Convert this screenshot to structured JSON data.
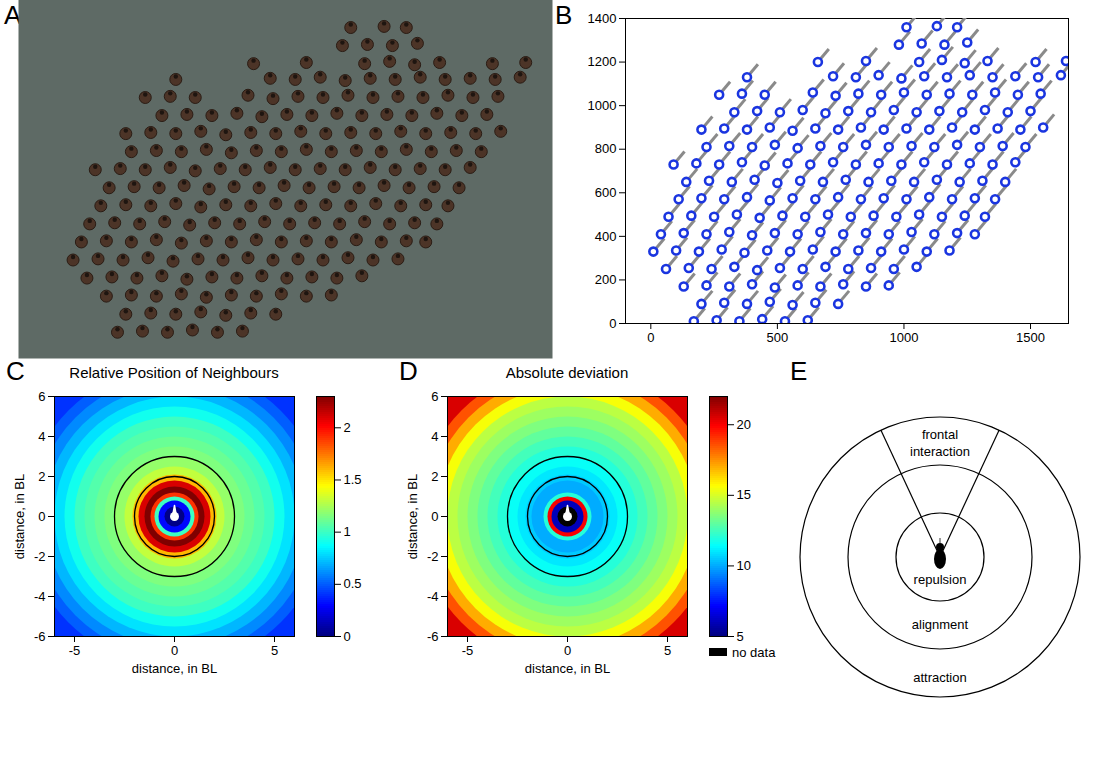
{
  "photo": {
    "panel": "A"
  },
  "chart_data": [
    {
      "panel": "B",
      "type": "scatter",
      "color": "#1a35e0",
      "heading": 40,
      "xlim": [
        -100,
        1650
      ],
      "xticks": [
        0,
        500,
        1000,
        1500
      ],
      "ylim": [
        0,
        1400
      ],
      "yticks": [
        0,
        200,
        400,
        600,
        800,
        1000,
        1200,
        1400
      ],
      "points": [
        [
          170,
          10
        ],
        [
          260,
          15
        ],
        [
          350,
          10
        ],
        [
          440,
          20
        ],
        [
          530,
          10
        ],
        [
          620,
          15
        ],
        [
          200,
          90
        ],
        [
          290,
          95
        ],
        [
          380,
          90
        ],
        [
          470,
          100
        ],
        [
          560,
          85
        ],
        [
          650,
          95
        ],
        [
          740,
          90
        ],
        [
          130,
          170
        ],
        [
          220,
          175
        ],
        [
          310,
          170
        ],
        [
          400,
          180
        ],
        [
          490,
          165
        ],
        [
          580,
          175
        ],
        [
          670,
          170
        ],
        [
          760,
          180
        ],
        [
          850,
          170
        ],
        [
          940,
          175
        ],
        [
          60,
          250
        ],
        [
          150,
          255
        ],
        [
          240,
          250
        ],
        [
          330,
          260
        ],
        [
          420,
          245
        ],
        [
          510,
          255
        ],
        [
          600,
          250
        ],
        [
          690,
          260
        ],
        [
          780,
          250
        ],
        [
          870,
          255
        ],
        [
          960,
          250
        ],
        [
          1050,
          260
        ],
        [
          10,
          330
        ],
        [
          100,
          335
        ],
        [
          190,
          330
        ],
        [
          280,
          340
        ],
        [
          370,
          325
        ],
        [
          460,
          335
        ],
        [
          550,
          330
        ],
        [
          640,
          340
        ],
        [
          730,
          330
        ],
        [
          820,
          335
        ],
        [
          910,
          330
        ],
        [
          1000,
          340
        ],
        [
          1090,
          330
        ],
        [
          1180,
          335
        ],
        [
          40,
          410
        ],
        [
          130,
          415
        ],
        [
          220,
          410
        ],
        [
          310,
          420
        ],
        [
          400,
          405
        ],
        [
          490,
          415
        ],
        [
          580,
          410
        ],
        [
          670,
          420
        ],
        [
          760,
          410
        ],
        [
          850,
          415
        ],
        [
          940,
          410
        ],
        [
          1030,
          420
        ],
        [
          1120,
          410
        ],
        [
          1210,
          415
        ],
        [
          1280,
          410
        ],
        [
          70,
          490
        ],
        [
          160,
          495
        ],
        [
          250,
          490
        ],
        [
          340,
          500
        ],
        [
          430,
          485
        ],
        [
          520,
          495
        ],
        [
          610,
          490
        ],
        [
          700,
          500
        ],
        [
          790,
          490
        ],
        [
          880,
          495
        ],
        [
          970,
          490
        ],
        [
          1060,
          500
        ],
        [
          1150,
          490
        ],
        [
          1240,
          495
        ],
        [
          1320,
          490
        ],
        [
          110,
          570
        ],
        [
          200,
          575
        ],
        [
          290,
          570
        ],
        [
          380,
          580
        ],
        [
          470,
          565
        ],
        [
          560,
          575
        ],
        [
          650,
          570
        ],
        [
          740,
          580
        ],
        [
          830,
          570
        ],
        [
          920,
          575
        ],
        [
          1010,
          570
        ],
        [
          1100,
          580
        ],
        [
          1190,
          570
        ],
        [
          1280,
          575
        ],
        [
          1360,
          570
        ],
        [
          140,
          650
        ],
        [
          230,
          655
        ],
        [
          320,
          650
        ],
        [
          410,
          660
        ],
        [
          500,
          645
        ],
        [
          590,
          655
        ],
        [
          680,
          650
        ],
        [
          770,
          660
        ],
        [
          860,
          650
        ],
        [
          950,
          655
        ],
        [
          1040,
          650
        ],
        [
          1130,
          660
        ],
        [
          1220,
          650
        ],
        [
          1310,
          655
        ],
        [
          1400,
          650
        ],
        [
          90,
          730
        ],
        [
          180,
          735
        ],
        [
          270,
          730
        ],
        [
          360,
          740
        ],
        [
          450,
          725
        ],
        [
          540,
          735
        ],
        [
          630,
          730
        ],
        [
          720,
          740
        ],
        [
          810,
          730
        ],
        [
          900,
          735
        ],
        [
          990,
          730
        ],
        [
          1080,
          740
        ],
        [
          1170,
          730
        ],
        [
          1260,
          735
        ],
        [
          1350,
          730
        ],
        [
          1440,
          740
        ],
        [
          220,
          810
        ],
        [
          310,
          815
        ],
        [
          400,
          810
        ],
        [
          490,
          820
        ],
        [
          580,
          805
        ],
        [
          670,
          815
        ],
        [
          760,
          810
        ],
        [
          850,
          820
        ],
        [
          940,
          810
        ],
        [
          1030,
          815
        ],
        [
          1120,
          810
        ],
        [
          1210,
          820
        ],
        [
          1300,
          810
        ],
        [
          1390,
          815
        ],
        [
          1480,
          810
        ],
        [
          200,
          890
        ],
        [
          290,
          895
        ],
        [
          380,
          890
        ],
        [
          470,
          900
        ],
        [
          560,
          885
        ],
        [
          650,
          895
        ],
        [
          740,
          890
        ],
        [
          830,
          900
        ],
        [
          920,
          890
        ],
        [
          1010,
          895
        ],
        [
          1100,
          890
        ],
        [
          1190,
          900
        ],
        [
          1280,
          890
        ],
        [
          1370,
          895
        ],
        [
          1460,
          890
        ],
        [
          1550,
          900
        ],
        [
          330,
          970
        ],
        [
          420,
          975
        ],
        [
          510,
          970
        ],
        [
          600,
          980
        ],
        [
          690,
          965
        ],
        [
          780,
          975
        ],
        [
          870,
          970
        ],
        [
          960,
          980
        ],
        [
          1050,
          970
        ],
        [
          1140,
          975
        ],
        [
          1230,
          970
        ],
        [
          1320,
          980
        ],
        [
          1410,
          970
        ],
        [
          1500,
          975
        ],
        [
          270,
          1050
        ],
        [
          360,
          1055
        ],
        [
          450,
          1050
        ],
        [
          640,
          1060
        ],
        [
          730,
          1045
        ],
        [
          820,
          1055
        ],
        [
          910,
          1050
        ],
        [
          1000,
          1060
        ],
        [
          1090,
          1050
        ],
        [
          1180,
          1055
        ],
        [
          1270,
          1050
        ],
        [
          1360,
          1060
        ],
        [
          1450,
          1050
        ],
        [
          1540,
          1055
        ],
        [
          380,
          1130
        ],
        [
          720,
          1135
        ],
        [
          810,
          1130
        ],
        [
          900,
          1140
        ],
        [
          990,
          1125
        ],
        [
          1080,
          1135
        ],
        [
          1170,
          1130
        ],
        [
          1260,
          1140
        ],
        [
          1350,
          1130
        ],
        [
          1440,
          1135
        ],
        [
          1530,
          1130
        ],
        [
          1620,
          1140
        ],
        [
          660,
          1200
        ],
        [
          850,
          1205
        ],
        [
          1060,
          1200
        ],
        [
          1150,
          1210
        ],
        [
          1240,
          1195
        ],
        [
          1330,
          1205
        ],
        [
          1520,
          1200
        ],
        [
          1640,
          1205
        ],
        [
          980,
          1280
        ],
        [
          1070,
          1285
        ],
        [
          1160,
          1280
        ],
        [
          1250,
          1290
        ],
        [
          1010,
          1360
        ],
        [
          1130,
          1365
        ],
        [
          1210,
          1360
        ]
      ]
    },
    {
      "panel": "C",
      "type": "heatmap",
      "title": "Relative Position of Neighbours",
      "xlabel": "distance, in BL",
      "ylabel": "distance, in BL",
      "xlim": [
        -6,
        6
      ],
      "xticks": [
        -5,
        0,
        5
      ],
      "ylim": [
        -6,
        6
      ],
      "yticks": [
        -6,
        -4,
        -2,
        0,
        2,
        4,
        6
      ],
      "rings": {
        "center": [
          0,
          0
        ],
        "edges": [
          0,
          0.5,
          0.8,
          1.0,
          1.2,
          1.5,
          1.8,
          2.1,
          2.5,
          3,
          3.5,
          4,
          4.5,
          5,
          5.5,
          6,
          6.5,
          7,
          7.5,
          8.5
        ],
        "values": [
          0.02,
          0.3,
          1.0,
          1.9,
          2.3,
          2.1,
          1.6,
          1.3,
          1.2,
          1.15,
          1.1,
          1.05,
          1.0,
          0.9,
          0.8,
          0.7,
          0.6,
          0.5,
          0.4
        ]
      },
      "circles": [
        2,
        3
      ],
      "colorbar": {
        "range": [
          0,
          2.3
        ],
        "ticks": [
          0,
          0.5,
          1,
          1.5,
          2
        ]
      }
    },
    {
      "panel": "D",
      "type": "heatmap",
      "title": "Absolute deviation",
      "xlabel": "distance, in BL",
      "ylabel": "distance, in BL",
      "xlim": [
        -6,
        6
      ],
      "xticks": [
        -5,
        0,
        5
      ],
      "ylim": [
        -6,
        6
      ],
      "yticks": [
        -6,
        -4,
        -2,
        0,
        2,
        4,
        6
      ],
      "rings": {
        "center": [
          0,
          0
        ],
        "edges": [
          0,
          0.5,
          0.8,
          1.0,
          1.2,
          1.5,
          1.8,
          2.1,
          2.5,
          3,
          3.5,
          4,
          4.5,
          5,
          5.5,
          6,
          6.5,
          7,
          7.5,
          8.5
        ],
        "values": [
          null,
          6,
          20,
          12,
          10,
          10,
          10.5,
          11,
          11.5,
          12,
          12.5,
          13,
          13.5,
          14,
          14.5,
          15.5,
          17,
          18.5,
          20.5
        ]
      },
      "circles": [
        2,
        3
      ],
      "colorbar": {
        "range": [
          5,
          22
        ],
        "ticks": [
          5,
          10,
          15,
          20
        ],
        "no_data_label": "no data"
      }
    }
  ],
  "diagram": {
    "panel": "E",
    "sector": "frontal interaction",
    "zones": [
      "repulsion",
      "alignment",
      "attraction"
    ]
  }
}
